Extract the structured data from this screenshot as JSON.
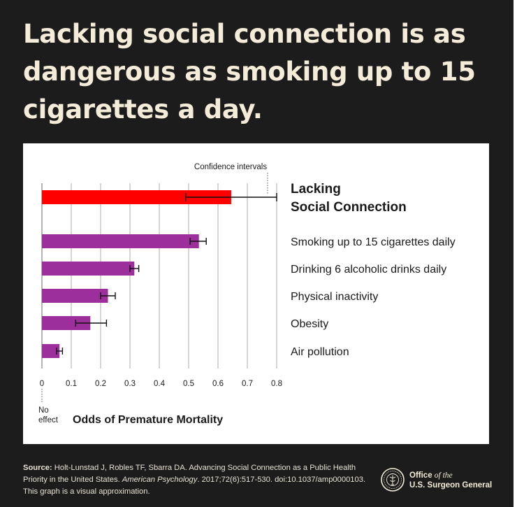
{
  "headline": "Lacking social connection is as dangerous as smoking up to 15 cigarettes a day.",
  "chart_data": {
    "type": "bar",
    "orientation": "horizontal",
    "categories": [
      "Lacking Social Connection",
      "Smoking up to 15 cigarettes daily",
      "Drinking 6 alcoholic drinks daily",
      "Physical inactivity",
      "Obesity",
      "Air pollution"
    ],
    "values": [
      0.645,
      0.535,
      0.315,
      0.225,
      0.165,
      0.06
    ],
    "ci_low": [
      0.49,
      0.505,
      0.3,
      0.2,
      0.115,
      0.05
    ],
    "ci_high": [
      0.8,
      0.56,
      0.33,
      0.25,
      0.22,
      0.07
    ],
    "highlight_index": 0,
    "xlim": [
      0,
      0.8
    ],
    "ticks": [
      "0",
      "0.1",
      "0.2",
      "0.3",
      "0.4",
      "0.5",
      "0.6",
      "0.7",
      "0.8"
    ],
    "xlabel": "Odds of Premature Mortality",
    "zero_label": "No effect",
    "annotation": "Confidence intervals",
    "grid": true,
    "colors": {
      "highlight": "#ff0000",
      "bars": "#9c2f9c",
      "grid": "#c9c9c9",
      "text": "#1a1a1a"
    }
  },
  "footer": {
    "source_label": "Source:",
    "source_text": "Holt-Lunstad J, Robles TF, Sbarra DA. Advancing Social Connection as a Public Health Priority in the United States.",
    "journal": "American Psychology",
    "citation": ". 2017;72(6):517-530. doi:10.1037/amp0000103. This graph is a visual approximation.",
    "office_line1": "Office",
    "office_of_the": "of the",
    "office_line2": "U.S. Surgeon General"
  },
  "colors": {
    "background": "#1c1c1c",
    "headline": "#f4ecd9",
    "panel": "#ffffff"
  }
}
